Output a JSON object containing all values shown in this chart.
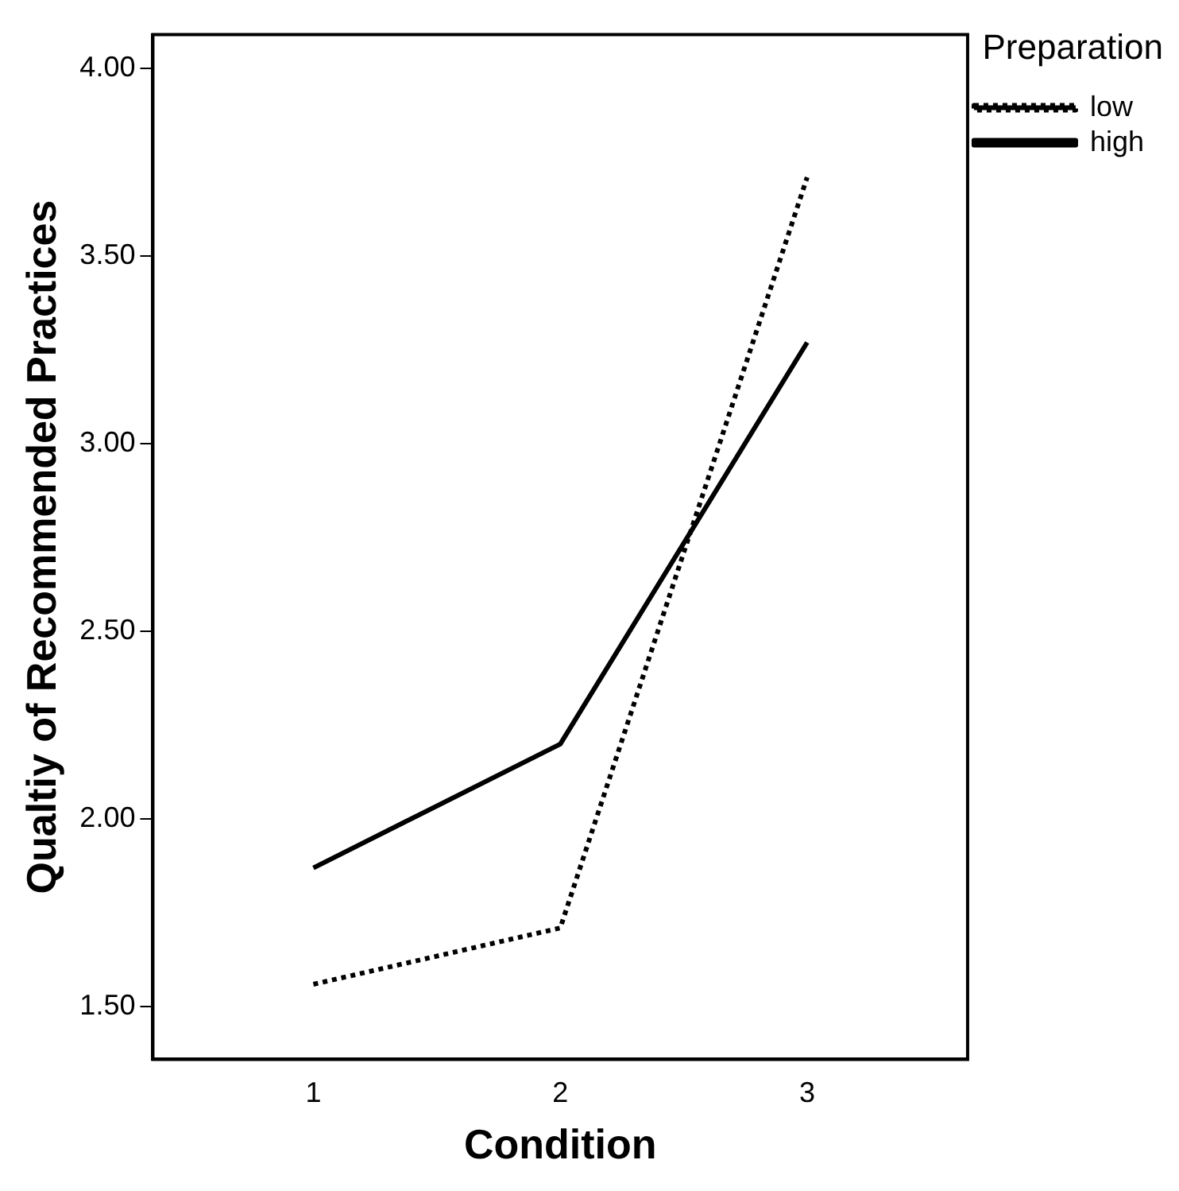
{
  "chart_data": {
    "type": "line",
    "xlabel": "Condition",
    "ylabel": "Qualtiy of Recommended Practices",
    "legend_title": "Preparation",
    "x": [
      1,
      2,
      3
    ],
    "xlim": [
      0.35,
      3.65
    ],
    "xticks": [
      1,
      2,
      3
    ],
    "ylim": [
      1.36,
      4.09
    ],
    "yticks": [
      {
        "value": 1.5,
        "label": "1.50"
      },
      {
        "value": 2,
        "label": "2.00"
      },
      {
        "value": 2.5,
        "label": "2.50"
      },
      {
        "value": 3,
        "label": "3.00"
      },
      {
        "value": 3.5,
        "label": "3.50"
      },
      {
        "value": 4,
        "label": "4.00"
      }
    ],
    "series": [
      {
        "name": "low",
        "color": "#000000",
        "line_style": "dotted",
        "values": [
          1.56,
          1.71,
          3.71
        ]
      },
      {
        "name": "high",
        "color": "#000000",
        "line_style": "solid",
        "values": [
          1.87,
          2.2,
          3.27
        ]
      }
    ],
    "grid": false,
    "legend": "top right",
    "marker": "none"
  }
}
